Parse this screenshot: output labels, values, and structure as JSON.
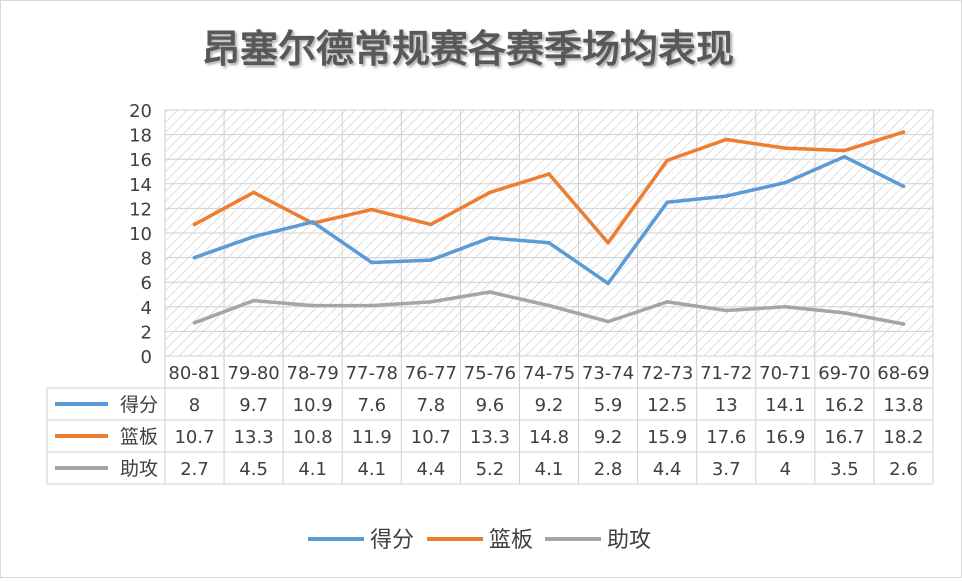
{
  "chart_data": {
    "type": "line",
    "title": "昂塞尔德常规赛各赛季场均表现",
    "categories": [
      "80-81",
      "79-80",
      "78-79",
      "77-78",
      "76-77",
      "75-76",
      "74-75",
      "73-74",
      "72-73",
      "71-72",
      "70-71",
      "69-70",
      "68-69"
    ],
    "ylim": [
      0,
      20
    ],
    "yticks": [
      "0",
      "2",
      "4",
      "6",
      "8",
      "10",
      "12",
      "14",
      "16",
      "18",
      "20"
    ],
    "grid": true,
    "legend_position": "bottom",
    "data_table": true,
    "series": [
      {
        "name": "得分",
        "color": "#5B9BD5",
        "values": [
          8,
          9.7,
          10.9,
          7.6,
          7.8,
          9.6,
          9.2,
          5.9,
          12.5,
          13,
          14.1,
          16.2,
          13.8
        ],
        "labels": [
          "8",
          "9.7",
          "10.9",
          "7.6",
          "7.8",
          "9.6",
          "9.2",
          "5.9",
          "12.5",
          "13",
          "14.1",
          "16.2",
          "13.8"
        ]
      },
      {
        "name": "篮板",
        "color": "#ED7D31",
        "values": [
          10.7,
          13.3,
          10.8,
          11.9,
          10.7,
          13.3,
          14.8,
          9.2,
          15.9,
          17.6,
          16.9,
          16.7,
          18.2
        ],
        "labels": [
          "10.7",
          "13.3",
          "10.8",
          "11.9",
          "10.7",
          "13.3",
          "14.8",
          "9.2",
          "15.9",
          "17.6",
          "16.9",
          "16.7",
          "18.2"
        ]
      },
      {
        "name": "助攻",
        "color": "#A5A5A5",
        "values": [
          2.7,
          4.5,
          4.1,
          4.1,
          4.4,
          5.2,
          4.1,
          2.8,
          4.4,
          3.7,
          4,
          3.5,
          2.6
        ],
        "labels": [
          "2.7",
          "4.5",
          "4.1",
          "4.1",
          "4.4",
          "5.2",
          "4.1",
          "2.8",
          "4.4",
          "3.7",
          "4",
          "3.5",
          "2.6"
        ]
      }
    ]
  }
}
